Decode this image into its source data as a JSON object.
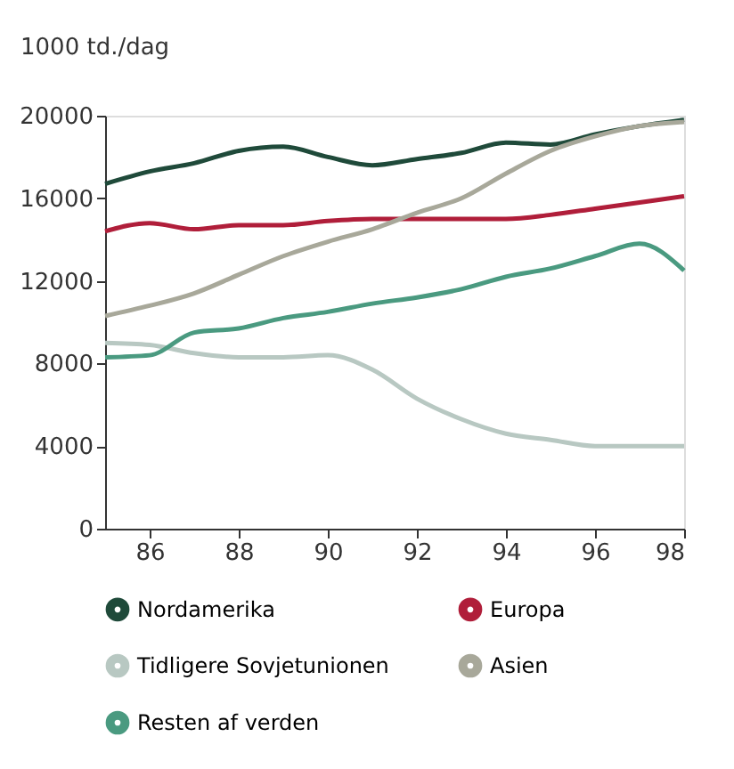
{
  "chart_data": {
    "type": "line",
    "ylabel": "1000 td./dag",
    "x": [
      85,
      86,
      87,
      88,
      89,
      90,
      91,
      92,
      93,
      94,
      95,
      96,
      97,
      98
    ],
    "xlim": [
      85,
      98
    ],
    "xticks": [
      86,
      88,
      90,
      92,
      94,
      96,
      98
    ],
    "ylim": [
      0,
      20000
    ],
    "yticks": [
      0,
      4000,
      8000,
      12000,
      16000,
      20000
    ],
    "grid": false,
    "legend": "bottom",
    "marker": "none",
    "line_style": "solid",
    "series": [
      {
        "name": "Nordamerika",
        "color": "#1f4a3a",
        "values": [
          16700,
          17300,
          17700,
          18300,
          18500,
          18000,
          17600,
          17900,
          18200,
          18700,
          18600,
          19100,
          19500,
          19800
        ]
      },
      {
        "name": "Europa",
        "color": "#b01e3a",
        "values": [
          14400,
          14800,
          14500,
          14700,
          14700,
          14900,
          15000,
          15000,
          15000,
          15000,
          15200,
          15500,
          15800,
          16100
        ]
      },
      {
        "name": "Tidligere Sovjetunionen",
        "color": "#b8c8c2",
        "values": [
          9000,
          8900,
          8500,
          8300,
          8300,
          8400,
          7700,
          6300,
          5300,
          4600,
          4300,
          4000,
          4000,
          4000
        ]
      },
      {
        "name": "Asien",
        "color": "#a8a89a",
        "values": [
          10300,
          10800,
          11400,
          12300,
          13200,
          13900,
          14500,
          15300,
          16000,
          17200,
          18300,
          19000,
          19500,
          19700
        ]
      },
      {
        "name": "Resten af verden",
        "color": "#4a9a80",
        "values": [
          8300,
          8400,
          9500,
          9700,
          10200,
          10500,
          10900,
          11200,
          11600,
          12200,
          12600,
          13200,
          13800,
          12500
        ]
      }
    ]
  }
}
